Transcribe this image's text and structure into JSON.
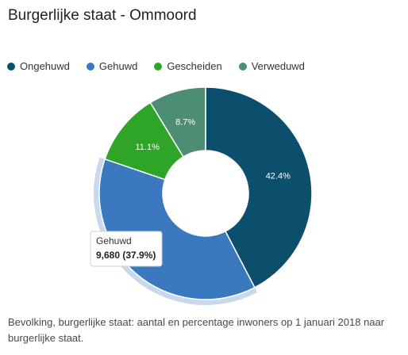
{
  "title": "Burgerlijke staat - Ommoord",
  "caption": "Bevolking, burgerlijke staat: aantal en percentage inwoners op 1 januari 2018 naar burgerlijke staat.",
  "tooltip": {
    "label": "Gehuwd",
    "value": "9,680 (37.9%)"
  },
  "chart_data": {
    "type": "pie",
    "variant": "donut",
    "legend_position": "top-left",
    "highlighted": "Gehuwd",
    "slices": [
      {
        "name": "Ongehuwd",
        "percent": 42.4,
        "label": "42.4%",
        "color": "#0b4f6c"
      },
      {
        "name": "Gehuwd",
        "percent": 37.9,
        "label": "",
        "color": "#3a78bf"
      },
      {
        "name": "Gescheiden",
        "percent": 11.1,
        "label": "11.1%",
        "color": "#2ea526"
      },
      {
        "name": "Verweduwd",
        "percent": 8.7,
        "label": "8.7%",
        "color": "#4c8d74"
      }
    ]
  }
}
